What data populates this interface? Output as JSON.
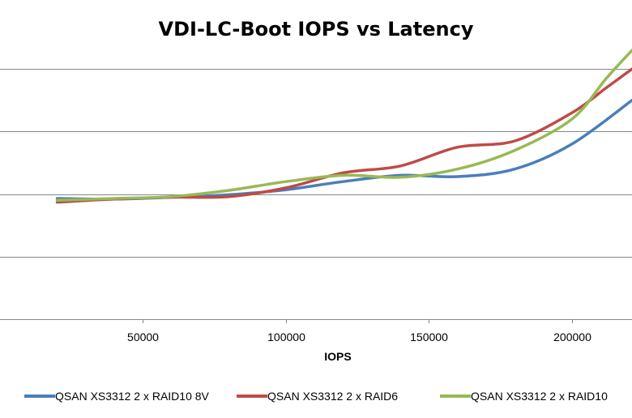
{
  "chart_data": {
    "type": "line",
    "title": "VDI-LC-Boot IOPS vs Latency",
    "xlabel": "IOPS",
    "ylabel": "",
    "xlim": [
      0,
      221000
    ],
    "xticks": [
      50000,
      100000,
      150000,
      200000
    ],
    "ylim": [
      0,
      5
    ],
    "grid": true,
    "legend": "bottom",
    "series": [
      {
        "name": "QSAN XS3312 2 x RAID10 8V",
        "color": "#4a7ebb",
        "points": [
          [
            20000,
            1.93
          ],
          [
            40000,
            1.92
          ],
          [
            60000,
            1.95
          ],
          [
            80000,
            1.99
          ],
          [
            100000,
            2.07
          ],
          [
            120000,
            2.2
          ],
          [
            140000,
            2.3
          ],
          [
            160000,
            2.28
          ],
          [
            180000,
            2.4
          ],
          [
            200000,
            2.8
          ],
          [
            221000,
            3.5
          ]
        ]
      },
      {
        "name": "QSAN XS3312 2 x RAID6",
        "color": "#be4b48",
        "points": [
          [
            20000,
            1.87
          ],
          [
            40000,
            1.92
          ],
          [
            60000,
            1.95
          ],
          [
            80000,
            1.96
          ],
          [
            100000,
            2.1
          ],
          [
            120000,
            2.34
          ],
          [
            140000,
            2.45
          ],
          [
            160000,
            2.75
          ],
          [
            180000,
            2.85
          ],
          [
            200000,
            3.3
          ],
          [
            212000,
            3.7
          ],
          [
            221000,
            4.0
          ]
        ]
      },
      {
        "name": "QSAN XS3312 2 x RAID10",
        "color": "#98b954",
        "points": [
          [
            20000,
            1.9
          ],
          [
            40000,
            1.93
          ],
          [
            60000,
            1.96
          ],
          [
            80000,
            2.06
          ],
          [
            100000,
            2.2
          ],
          [
            120000,
            2.3
          ],
          [
            140000,
            2.27
          ],
          [
            160000,
            2.4
          ],
          [
            180000,
            2.7
          ],
          [
            200000,
            3.2
          ],
          [
            212000,
            3.85
          ],
          [
            221000,
            4.3
          ]
        ]
      }
    ]
  }
}
